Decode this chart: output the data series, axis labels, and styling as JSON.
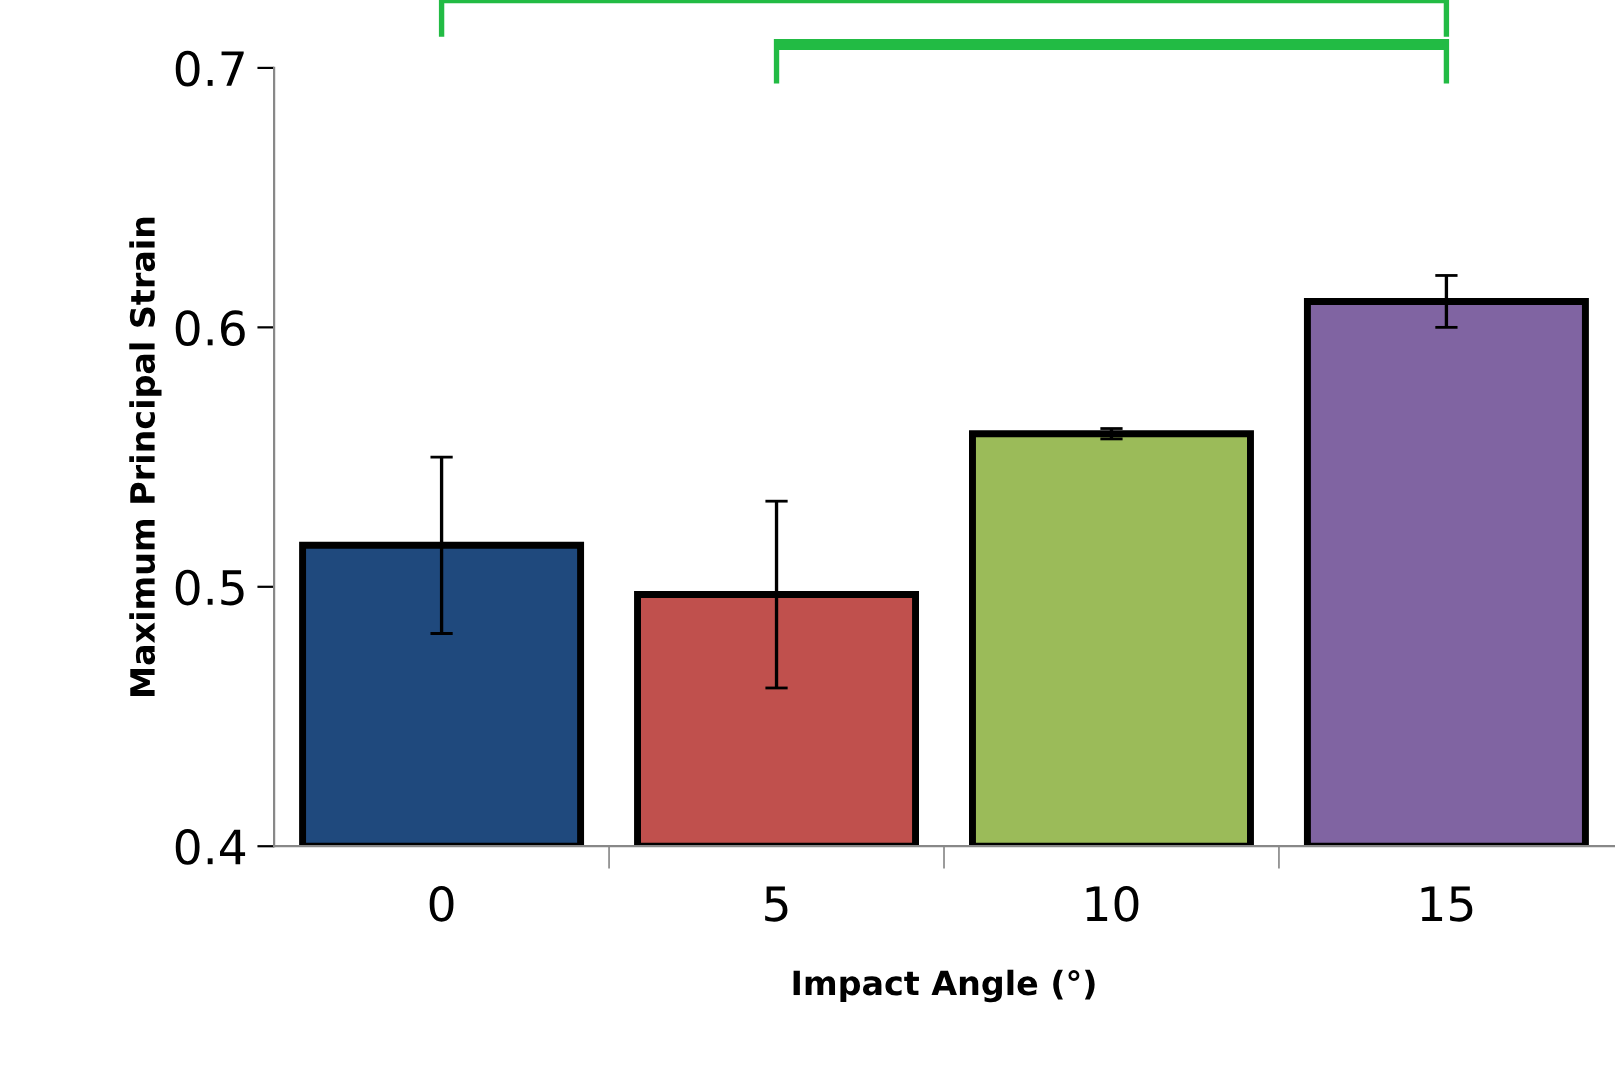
{
  "chart_data": {
    "type": "bar",
    "xlabel": "Impact Angle (°)",
    "ylabel": "Maximum Principal Strain",
    "categories": [
      "0",
      "5",
      "10",
      "15"
    ],
    "values": [
      0.516,
      0.497,
      0.559,
      0.61
    ],
    "errors": [
      0.034,
      0.036,
      0.002,
      0.01
    ],
    "colors": [
      "#1f497d",
      "#c0504d",
      "#9bbb59",
      "#8064a2"
    ],
    "ylim": [
      0.4,
      0.7
    ],
    "yticks": [
      0.4,
      0.5,
      0.6,
      0.7
    ],
    "grid": false,
    "legend": false
  }
}
